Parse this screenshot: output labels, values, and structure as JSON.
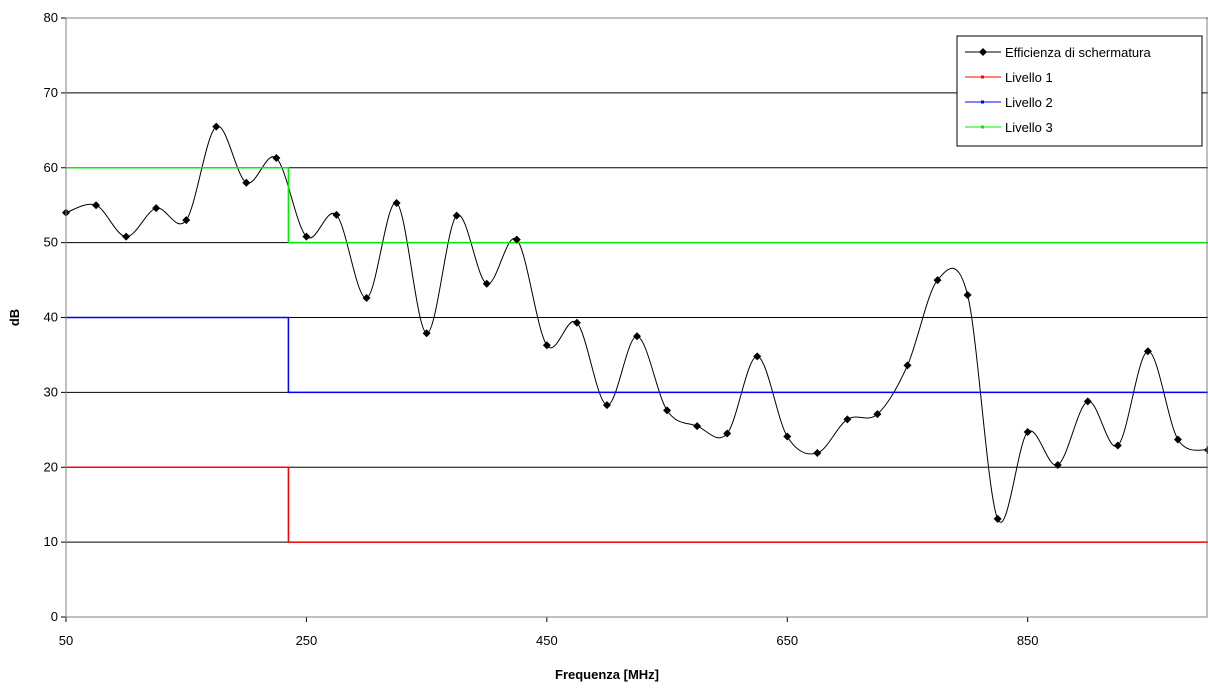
{
  "chart_data": {
    "type": "line",
    "title": "",
    "xlabel": "Frequenza [MHz]",
    "ylabel": "dB",
    "xlim": [
      50,
      1000
    ],
    "ylim": [
      0,
      80
    ],
    "x_ticks": [
      50,
      250,
      450,
      650,
      850
    ],
    "y_ticks": [
      0,
      10,
      20,
      30,
      40,
      50,
      60,
      70,
      80
    ],
    "grid": "horizontal",
    "legend_position": "top-right",
    "series": [
      {
        "name": "Efficienza di schermatura",
        "color": "#000000",
        "marker": "diamond",
        "smooth": true,
        "x": [
          50,
          75,
          100,
          125,
          150,
          175,
          200,
          225,
          250,
          275,
          300,
          325,
          350,
          375,
          400,
          425,
          450,
          475,
          500,
          525,
          550,
          575,
          600,
          625,
          650,
          675,
          700,
          725,
          750,
          775,
          800,
          825,
          850,
          875,
          900,
          925,
          950,
          975,
          1000
        ],
        "y": [
          54,
          55,
          50.8,
          54.6,
          53,
          65.5,
          58,
          61.3,
          50.8,
          53.7,
          42.6,
          55.3,
          37.9,
          53.6,
          44.5,
          50.4,
          36.3,
          39.3,
          28.3,
          37.5,
          27.6,
          25.5,
          24.5,
          34.8,
          24.1,
          21.9,
          26.4,
          27.1,
          33.6,
          45,
          43,
          13.1,
          24.7,
          20.3,
          28.8,
          22.9,
          35.5,
          23.7,
          22.3
        ]
      },
      {
        "name": "Livello 1",
        "color": "#ff0000",
        "x": [
          50,
          235,
          235,
          1000
        ],
        "y": [
          20,
          20,
          10,
          10
        ]
      },
      {
        "name": "Livello 2",
        "color": "#0000ff",
        "x": [
          50,
          235,
          235,
          1000
        ],
        "y": [
          40,
          40,
          30,
          30
        ]
      },
      {
        "name": "Livello 3",
        "color": "#00ee00",
        "x": [
          50,
          235,
          235,
          1000
        ],
        "y": [
          60,
          60,
          50,
          50
        ]
      }
    ]
  }
}
